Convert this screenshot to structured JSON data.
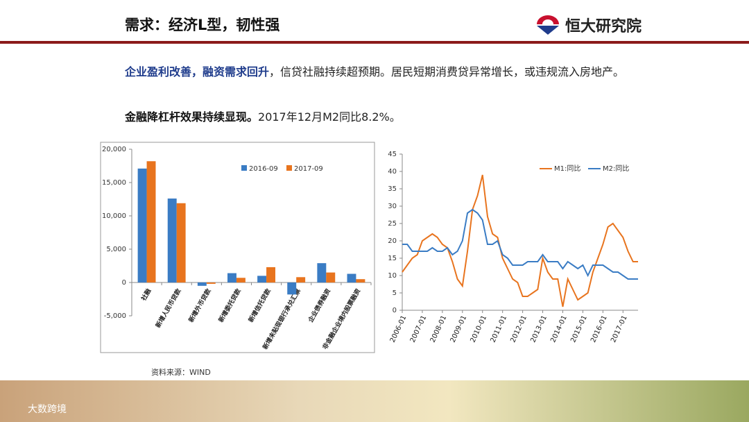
{
  "header": {
    "title": "需求：经济L型，韧性强",
    "brand": "恒大研究院"
  },
  "text": {
    "paragraphs": [
      {
        "highlight": "企业盈利改善，融资需求回升",
        "rest": "，信贷社融持续超预期。居民短期消费贷异常增长，或违规流入房地产。"
      },
      {
        "highlight": "金融降杠杆效果持续显现。",
        "rest": "2017年12月M2同比8.2%。"
      }
    ]
  },
  "source": "资料来源：WIND",
  "watermark": "大数跨境",
  "chart_data": [
    {
      "type": "bar",
      "categories": [
        "社融",
        "新增人民币贷款",
        "新增外币贷款",
        "新增委托贷款",
        "新增信托贷款",
        "新增未贴现银行承兑汇票",
        "企业债券融资",
        "非金融企业境内股票融资"
      ],
      "series": [
        {
          "name": "2016-09",
          "color": "#3a7cc4",
          "values": [
            17100,
            12600,
            -500,
            1400,
            1000,
            -1800,
            2900,
            1300
          ]
        },
        {
          "name": "2017-09",
          "color": "#e8741e",
          "values": [
            18200,
            11900,
            -200,
            700,
            2300,
            800,
            1500,
            500
          ]
        }
      ],
      "ylim": [
        -5000,
        20000
      ],
      "yticks": [
        {
          "value": -5000,
          "label": "-5,000"
        },
        0,
        {
          "value": 5000,
          "label": "5,000"
        },
        {
          "value": 10000,
          "label": "10,000"
        },
        {
          "value": 15000,
          "label": "15,000"
        },
        {
          "value": 20000,
          "label": "20,000"
        }
      ]
    },
    {
      "type": "line",
      "categories": [
        "2006-01",
        null,
        null,
        null,
        "2007-01",
        null,
        null,
        null,
        "2008-01",
        null,
        null,
        null,
        "2009-01",
        null,
        null,
        null,
        "2010-01",
        null,
        null,
        null,
        "2011-01",
        null,
        null,
        null,
        "2012-01",
        null,
        null,
        null,
        "2013-01",
        null,
        null,
        null,
        "2014-01",
        null,
        null,
        null,
        "2015-01",
        null,
        null,
        null,
        "2016-01",
        null,
        null,
        null,
        "2017-01",
        null,
        null,
        null
      ],
      "series": [
        {
          "name": "M1:同比",
          "color": "#e8741e",
          "values": [
            11,
            13,
            15,
            16,
            20,
            21,
            22,
            21,
            19,
            18,
            14,
            9,
            7,
            17,
            29,
            33,
            39,
            27,
            22,
            21,
            15,
            12,
            9,
            8,
            4,
            4,
            5,
            6,
            15,
            11,
            9,
            9,
            1,
            9,
            6,
            3,
            4,
            5,
            11,
            15,
            19,
            24,
            25,
            23,
            21,
            17,
            14,
            14
          ]
        },
        {
          "name": "M2:同比",
          "color": "#3a7cc4",
          "values": [
            19,
            19,
            17,
            17,
            17,
            17,
            18,
            17,
            17,
            18,
            16,
            17,
            20,
            28,
            29,
            28,
            26,
            19,
            19,
            20,
            16,
            15,
            13,
            13,
            13,
            14,
            14,
            14,
            16,
            14,
            14,
            14,
            12,
            14,
            13,
            12,
            13,
            10,
            13,
            13,
            13,
            12,
            11,
            11,
            10,
            9,
            9,
            9
          ]
        }
      ],
      "ylim": [
        0,
        45
      ],
      "yticks": [
        0,
        5,
        10,
        15,
        20,
        25,
        30,
        35,
        40,
        45
      ]
    }
  ]
}
